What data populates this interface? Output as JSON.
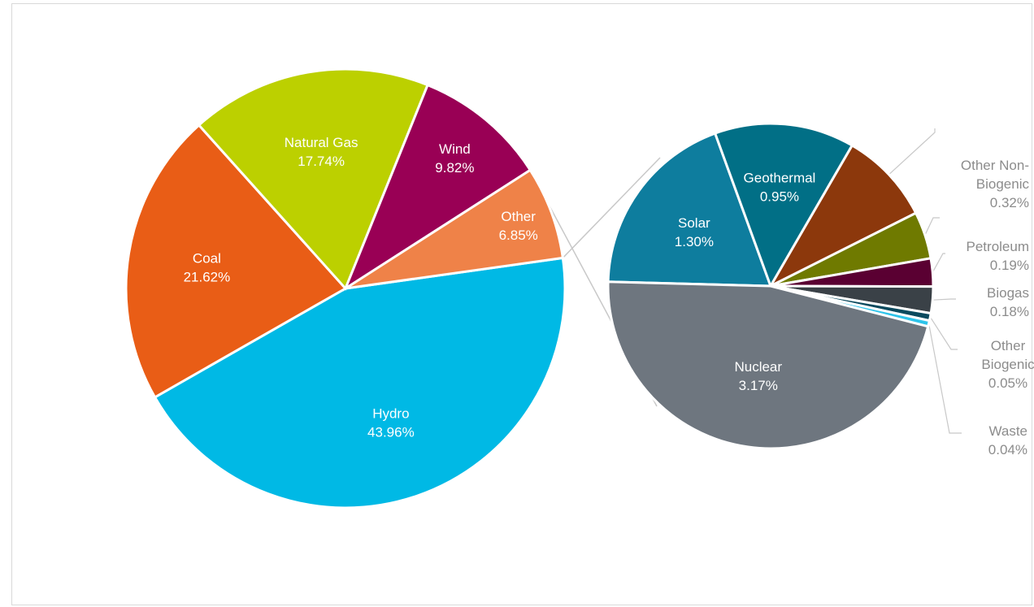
{
  "chart_data": [
    {
      "type": "pie",
      "title": "",
      "slices": [
        {
          "label": "Hydro",
          "value": 43.96,
          "display": "43.96%",
          "color": "#00B9E5"
        },
        {
          "label": "Coal",
          "value": 21.62,
          "display": "21.62%",
          "color": "#E95D16"
        },
        {
          "label": "Natural Gas",
          "value": 17.74,
          "display": "17.74%",
          "color": "#BCD000"
        },
        {
          "label": "Wind",
          "value": 9.82,
          "display": "9.82%",
          "color": "#990055"
        },
        {
          "label": "Other",
          "value": 6.85,
          "display": "6.85%",
          "color": "#EF8248"
        }
      ]
    },
    {
      "type": "pie",
      "title": "",
      "slices": [
        {
          "label": "Nuclear",
          "value": 3.17,
          "display": "3.17%",
          "color": "#6E767F"
        },
        {
          "label": "Solar",
          "value": 1.3,
          "display": "1.30%",
          "color": "#0E7D9E"
        },
        {
          "label": "Geothermal",
          "value": 0.95,
          "display": "0.95%",
          "color": "#016F86"
        },
        {
          "label": "",
          "value": 0.63,
          "display": "",
          "color": "#8C380C"
        },
        {
          "label": "Other Non-Biogenic",
          "value": 0.32,
          "display": "0.32%",
          "color": "#6F7A00"
        },
        {
          "label": "Petroleum",
          "value": 0.19,
          "display": "0.19%",
          "color": "#5A0032"
        },
        {
          "label": "Biogas",
          "value": 0.18,
          "display": "0.18%",
          "color": "#3A4147"
        },
        {
          "label": "Other Biogenic",
          "value": 0.05,
          "display": "0.05%",
          "color": "#0A4A5E"
        },
        {
          "label": "Waste",
          "value": 0.04,
          "display": "0.04%",
          "color": "#2EC4EA"
        }
      ]
    }
  ]
}
